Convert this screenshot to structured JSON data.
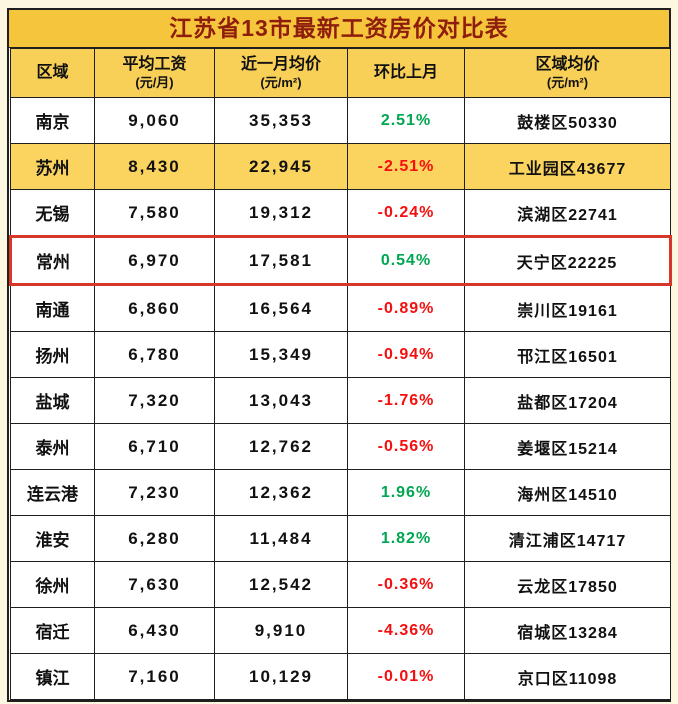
{
  "title": "江苏省13市最新工资房价对比表",
  "colors": {
    "title_bg": "#f5c53c",
    "title_text": "#8e1d0d",
    "header_bg": "#f8d058",
    "highlight_row_bg": "#fad45f",
    "positive": "#00a651",
    "negative": "#f50f0f",
    "outline_border": "#d5382b",
    "grid_border": "#1f1f1f"
  },
  "table": {
    "headers": [
      {
        "label": "区域",
        "sub": ""
      },
      {
        "label": "平均工资",
        "sub": "(元/月)"
      },
      {
        "label": "近一月均价",
        "sub": "(元/m²)"
      },
      {
        "label": "环比上月",
        "sub": ""
      },
      {
        "label": "区域均价",
        "sub": "(元/m²)"
      }
    ],
    "rows": [
      {
        "city": "南京",
        "salary": "9,060",
        "price": "35,353",
        "mom": "2.51%",
        "region": "鼓楼区50330",
        "highlight": false,
        "outlined": false
      },
      {
        "city": "苏州",
        "salary": "8,430",
        "price": "22,945",
        "mom": "-2.51%",
        "region": "工业园区43677",
        "highlight": true,
        "outlined": false
      },
      {
        "city": "无锡",
        "salary": "7,580",
        "price": "19,312",
        "mom": "-0.24%",
        "region": "滨湖区22741",
        "highlight": false,
        "outlined": false
      },
      {
        "city": "常州",
        "salary": "6,970",
        "price": "17,581",
        "mom": "0.54%",
        "region": "天宁区22225",
        "highlight": false,
        "outlined": true
      },
      {
        "city": "南通",
        "salary": "6,860",
        "price": "16,564",
        "mom": "-0.89%",
        "region": "崇川区19161",
        "highlight": false,
        "outlined": false
      },
      {
        "city": "扬州",
        "salary": "6,780",
        "price": "15,349",
        "mom": "-0.94%",
        "region": "邗江区16501",
        "highlight": false,
        "outlined": false
      },
      {
        "city": "盐城",
        "salary": "7,320",
        "price": "13,043",
        "mom": "-1.76%",
        "region": "盐都区17204",
        "highlight": false,
        "outlined": false
      },
      {
        "city": "泰州",
        "salary": "6,710",
        "price": "12,762",
        "mom": "-0.56%",
        "region": "姜堰区15214",
        "highlight": false,
        "outlined": false
      },
      {
        "city": "连云港",
        "salary": "7,230",
        "price": "12,362",
        "mom": "1.96%",
        "region": "海州区14510",
        "highlight": false,
        "outlined": false
      },
      {
        "city": "淮安",
        "salary": "6,280",
        "price": "11,484",
        "mom": "1.82%",
        "region": "清江浦区14717",
        "highlight": false,
        "outlined": false
      },
      {
        "city": "徐州",
        "salary": "7,630",
        "price": "12,542",
        "mom": "-0.36%",
        "region": "云龙区17850",
        "highlight": false,
        "outlined": false
      },
      {
        "city": "宿迁",
        "salary": "6,430",
        "price": "9,910",
        "mom": "-4.36%",
        "region": "宿城区13284",
        "highlight": false,
        "outlined": false
      },
      {
        "city": "镇江",
        "salary": "7,160",
        "price": "10,129",
        "mom": "-0.01%",
        "region": "京口区11098",
        "highlight": false,
        "outlined": false
      }
    ]
  },
  "chart_data": {
    "type": "table",
    "title": "江苏省13市最新工资房价对比表",
    "columns": [
      "区域",
      "平均工资(元/月)",
      "近一月均价(元/m²)",
      "环比上月",
      "区域均价(元/m²)"
    ],
    "rows": [
      [
        "南京",
        9060,
        35353,
        "2.51%",
        "鼓楼区50330"
      ],
      [
        "苏州",
        8430,
        22945,
        "-2.51%",
        "工业园区43677"
      ],
      [
        "无锡",
        7580,
        19312,
        "-0.24%",
        "滨湖区22741"
      ],
      [
        "常州",
        6970,
        17581,
        "0.54%",
        "天宁区22225"
      ],
      [
        "南通",
        6860,
        16564,
        "-0.89%",
        "崇川区19161"
      ],
      [
        "扬州",
        6780,
        15349,
        "-0.94%",
        "邗江区16501"
      ],
      [
        "盐城",
        7320,
        13043,
        "-1.76%",
        "盐都区17204"
      ],
      [
        "泰州",
        6710,
        12762,
        "-0.56%",
        "姜堰区15214"
      ],
      [
        "连云港",
        7230,
        12362,
        "1.96%",
        "海州区14510"
      ],
      [
        "淮安",
        6280,
        11484,
        "1.82%",
        "清江浦区14717"
      ],
      [
        "徐州",
        7630,
        12542,
        "-0.36%",
        "云龙区17850"
      ],
      [
        "宿迁",
        6430,
        9910,
        "-4.36%",
        "宿城区13284"
      ],
      [
        "镇江",
        7160,
        10129,
        "-0.01%",
        "京口区11098"
      ]
    ],
    "value_color_rule": "负值红色(#f50f0f)，正值绿色(#00a651)",
    "highlighted_rows": {
      "苏州": "yellow-fill",
      "常州": "red-outline"
    }
  }
}
